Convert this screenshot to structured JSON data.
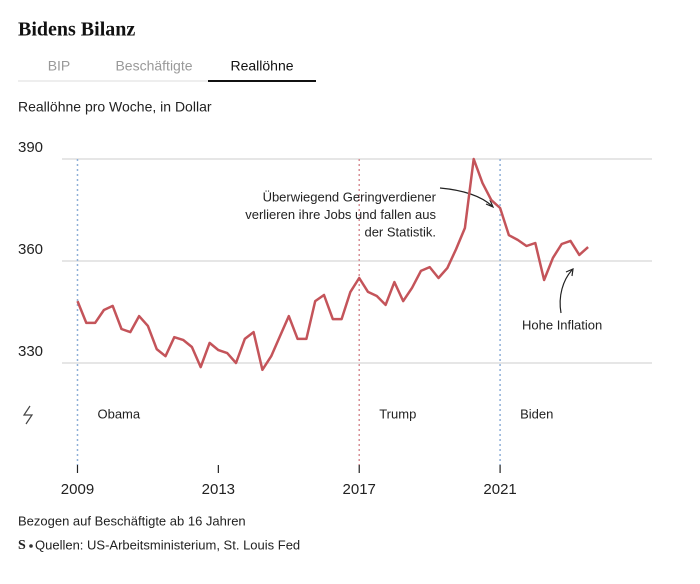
{
  "tabs": [
    "BIP",
    "Beschäftigte",
    "Reallöhne"
  ],
  "active_tab": 2,
  "chart_data": {
    "type": "line",
    "title": "Bidens Bilanz",
    "subtitle": "Reallöhne pro Woche, in Dollar",
    "x": [
      2009,
      2009.25,
      2009.5,
      2009.75,
      2010,
      2010.25,
      2010.5,
      2010.75,
      2011,
      2011.25,
      2011.5,
      2011.75,
      2012,
      2012.25,
      2012.5,
      2012.75,
      2013,
      2013.25,
      2013.5,
      2013.75,
      2014,
      2014.25,
      2014.5,
      2014.75,
      2015,
      2015.25,
      2015.5,
      2015.75,
      2016,
      2016.25,
      2016.5,
      2016.75,
      2017,
      2017.25,
      2017.5,
      2017.75,
      2018,
      2018.25,
      2018.5,
      2018.75,
      2019,
      2019.25,
      2019.5,
      2019.75,
      2020,
      2020.25,
      2020.5,
      2020.75,
      2021,
      2021.25,
      2021.5,
      2021.75,
      2022,
      2022.25,
      2022.5,
      2022.75,
      2023,
      2023.25,
      2023.5
    ],
    "series": [
      {
        "name": "Reallöhne",
        "color": "#c4545a",
        "values": [
          348.2,
          341.8,
          341.8,
          345.6,
          346.8,
          340,
          339.1,
          343.8,
          340.9,
          334.1,
          332,
          337.6,
          336.8,
          334.7,
          328.8,
          335.9,
          333.8,
          332.9,
          330,
          337.1,
          339.1,
          328,
          332,
          337.9,
          343.8,
          337.1,
          337.1,
          348.2,
          350,
          342.9,
          342.9,
          350.9,
          355,
          350.9,
          349.7,
          347.1,
          353.8,
          348.2,
          352.1,
          357.1,
          358.2,
          355,
          357.9,
          363.5,
          369.7,
          390,
          382.9,
          377.9,
          375.6,
          367.6,
          366.2,
          364.4,
          365.3,
          354.4,
          360.9,
          365,
          365.9,
          361.8,
          364.1
        ]
      }
    ],
    "xlim": [
      2008.6,
      2025.2
    ],
    "xticks": [
      2009,
      2013,
      2017,
      2021
    ],
    "ylim": [
      300,
      390
    ],
    "yticks": [
      330,
      360,
      390
    ],
    "grid": true,
    "periods": [
      {
        "label": "Obama",
        "x": 2009,
        "color": "#8fb0d8"
      },
      {
        "label": "Trump",
        "x": 2017,
        "color": "#d88f95"
      },
      {
        "label": "Biden",
        "x": 2021,
        "color": "#8fb0d8"
      }
    ],
    "annotations": [
      {
        "lines": [
          "Überwiegend Geringverdiener",
          "verlieren ihre Jobs und fallen aus",
          "der Statistik."
        ]
      },
      {
        "lines": [
          "Hohe Inflation"
        ]
      }
    ],
    "note": "Bezogen auf Beschäftigte ab 16 Jahren",
    "logo": "S",
    "source": "Quellen: US-Arbeitsministerium, St. Louis Fed"
  }
}
